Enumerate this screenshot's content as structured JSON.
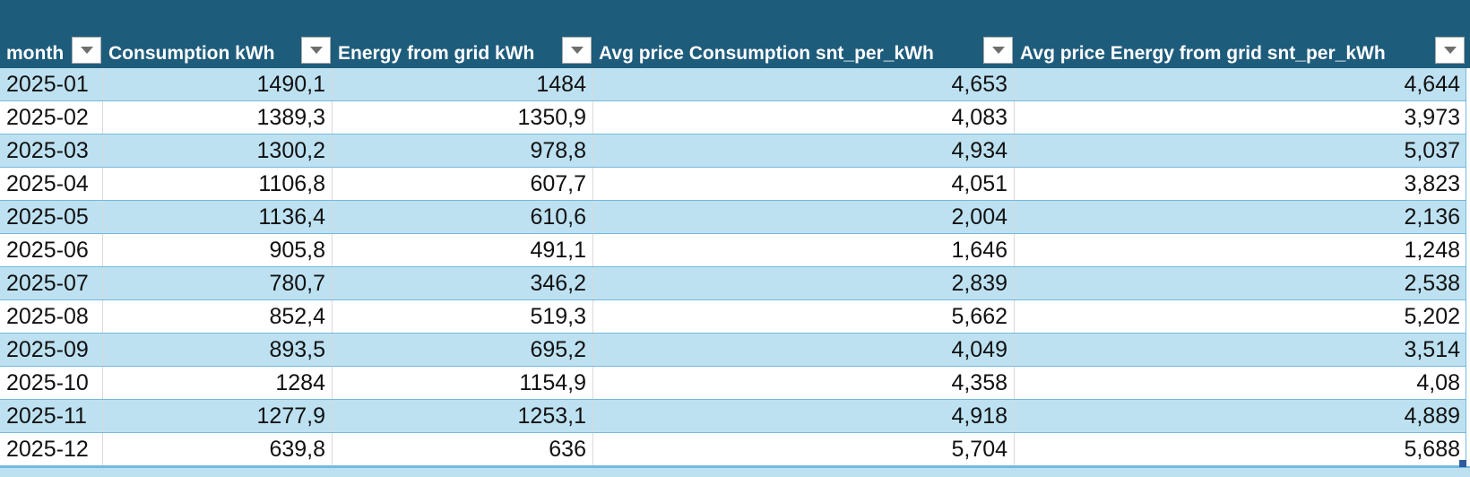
{
  "app": {
    "kind": "spreadsheet-table",
    "description_visible": "Excel-style filtered table of monthly energy data for 2025"
  },
  "colors": {
    "header_bg": "#1E5C7C",
    "band": "#BDE1F1",
    "row_border": "#74B9DF",
    "grid": "#D9D9D9",
    "handle": "#2E5B9E",
    "header_text": "#FFFFFF",
    "cell_text": "#111111"
  },
  "icons": {
    "filter_dropdown": "▼"
  },
  "table": {
    "columns": [
      {
        "label": "month",
        "align": "left"
      },
      {
        "label": "Consumption kWh",
        "align": "right"
      },
      {
        "label": "Energy from grid kWh",
        "align": "right"
      },
      {
        "label": "Avg price Consumption snt_per_kWh",
        "align": "right"
      },
      {
        "label": "Avg price Energy from grid snt_per_kWh",
        "align": "right"
      }
    ],
    "rows": [
      [
        "2025-01",
        "1490,1",
        "1484",
        "4,653",
        "4,644"
      ],
      [
        "2025-02",
        "1389,3",
        "1350,9",
        "4,083",
        "3,973"
      ],
      [
        "2025-03",
        "1300,2",
        "978,8",
        "4,934",
        "5,037"
      ],
      [
        "2025-04",
        "1106,8",
        "607,7",
        "4,051",
        "3,823"
      ],
      [
        "2025-05",
        "1136,4",
        "610,6",
        "2,004",
        "2,136"
      ],
      [
        "2025-06",
        "905,8",
        "491,1",
        "1,646",
        "1,248"
      ],
      [
        "2025-07",
        "780,7",
        "346,2",
        "2,839",
        "2,538"
      ],
      [
        "2025-08",
        "852,4",
        "519,3",
        "5,662",
        "5,202"
      ],
      [
        "2025-09",
        "893,5",
        "695,2",
        "4,049",
        "3,514"
      ],
      [
        "2025-10",
        "1284",
        "1154,9",
        "4,358",
        "4,08"
      ],
      [
        "2025-11",
        "1277,9",
        "1253,1",
        "4,918",
        "4,889"
      ],
      [
        "2025-12",
        "639,8",
        "636",
        "5,704",
        "5,688"
      ]
    ]
  }
}
